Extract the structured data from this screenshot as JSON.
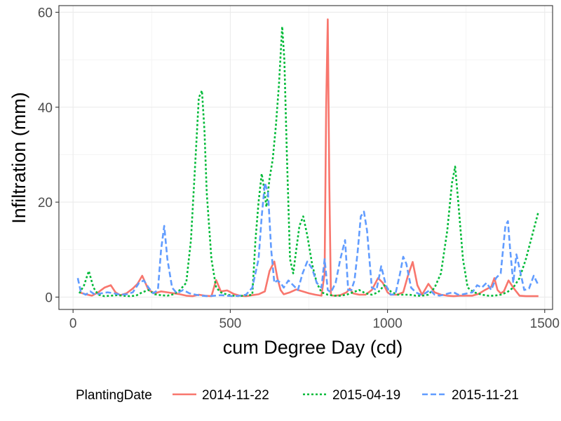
{
  "chart_data": {
    "type": "line",
    "xlabel": "cum Degree Day (cd)",
    "ylabel": "Infiltration (mm)",
    "xlim": [
      -45,
      1525
    ],
    "ylim": [
      -2.6,
      61.4
    ],
    "x_ticks": [
      0,
      500,
      1000,
      1500
    ],
    "x_tick_labels": [
      "0",
      "500",
      "1000",
      "1500"
    ],
    "y_ticks": [
      0,
      20,
      40,
      60
    ],
    "y_tick_labels": [
      "0",
      "20",
      "40",
      "60"
    ],
    "grid": true,
    "legend_position": "bottom",
    "legend_title": "PlantingDate",
    "series": [
      {
        "name": "2014-11-22",
        "color": "#F8766D",
        "dash": "solid",
        "x": [
          20,
          40,
          60,
          80,
          100,
          120,
          135,
          150,
          170,
          190,
          205,
          220,
          240,
          260,
          280,
          300,
          320,
          340,
          360,
          380,
          400,
          420,
          440,
          455,
          470,
          490,
          510,
          530,
          550,
          570,
          590,
          610,
          625,
          640,
          650,
          660,
          670,
          690,
          710,
          730,
          750,
          770,
          790,
          800,
          805,
          810,
          815,
          820,
          830,
          850,
          870,
          880,
          890,
          910,
          930,
          950,
          970,
          985,
          1000,
          1010,
          1030,
          1050,
          1065,
          1080,
          1095,
          1110,
          1130,
          1150,
          1170,
          1190,
          1210,
          1230,
          1250,
          1270,
          1290,
          1310,
          1330,
          1340,
          1350,
          1360,
          1370,
          1385,
          1400,
          1420,
          1440,
          1460,
          1480
        ],
        "values": [
          1.0,
          0.6,
          0.3,
          1.0,
          2.0,
          2.5,
          1.0,
          0.4,
          0.8,
          1.8,
          2.8,
          4.5,
          1.5,
          0.8,
          1.2,
          1.0,
          0.8,
          0.6,
          0.3,
          0.2,
          0.5,
          0.3,
          0.2,
          3.6,
          1.2,
          1.4,
          0.7,
          0.3,
          0.2,
          0.4,
          0.6,
          1.2,
          5.5,
          7.5,
          4.0,
          1.5,
          0.6,
          1.0,
          1.6,
          1.2,
          0.8,
          0.5,
          0.3,
          5.0,
          40.0,
          58.5,
          24.0,
          0.4,
          0.3,
          0.4,
          1.0,
          1.8,
          0.8,
          0.5,
          0.5,
          1.5,
          4.0,
          3.0,
          1.0,
          0.5,
          0.5,
          1.0,
          4.5,
          7.4,
          2.5,
          0.5,
          2.8,
          1.0,
          0.5,
          0.3,
          0.2,
          0.3,
          0.3,
          0.3,
          0.7,
          1.5,
          2.2,
          4.0,
          1.5,
          0.8,
          1.2,
          3.5,
          2.0,
          0.3,
          0.2,
          0.2,
          0.2
        ]
      },
      {
        "name": "2015-04-19",
        "color": "#00BA38",
        "dash": "dotted",
        "x": [
          20,
          35,
          50,
          65,
          80,
          100,
          120,
          140,
          160,
          180,
          200,
          220,
          240,
          260,
          280,
          300,
          320,
          340,
          360,
          375,
          390,
          400,
          410,
          418,
          425,
          440,
          455,
          470,
          490,
          510,
          530,
          550,
          560,
          570,
          580,
          590,
          600,
          605,
          615,
          625,
          635,
          645,
          655,
          665,
          672,
          680,
          690,
          700,
          710,
          720,
          732,
          745,
          760,
          775,
          790,
          810,
          830,
          850,
          870,
          890,
          910,
          930,
          950,
          970,
          990,
          1010,
          1030,
          1050,
          1070,
          1090,
          1110,
          1130,
          1150,
          1170,
          1190,
          1205,
          1215,
          1225,
          1240,
          1255,
          1275,
          1300,
          1320,
          1340,
          1360,
          1380,
          1400,
          1420,
          1440,
          1460,
          1480
        ],
        "values": [
          0.8,
          2.5,
          5.5,
          2.0,
          0.5,
          0.2,
          0.3,
          0.4,
          0.3,
          0.2,
          0.3,
          1.0,
          1.5,
          0.6,
          0.4,
          0.3,
          0.6,
          1.5,
          3.0,
          12.0,
          30.0,
          42.0,
          43.5,
          35.0,
          22.0,
          8.0,
          2.0,
          1.0,
          0.5,
          0.3,
          0.2,
          0.4,
          0.4,
          0.5,
          12.0,
          20.0,
          26.0,
          24.0,
          19.0,
          25.0,
          29.0,
          36.0,
          45.0,
          57.0,
          50.0,
          30.0,
          8.0,
          5.0,
          10.0,
          15.0,
          17.0,
          13.0,
          7.0,
          3.0,
          1.0,
          0.5,
          0.3,
          0.3,
          0.5,
          1.0,
          1.5,
          0.8,
          0.5,
          1.0,
          2.5,
          1.2,
          0.5,
          0.5,
          0.5,
          0.3,
          0.3,
          0.5,
          2.0,
          5.0,
          14.0,
          24.0,
          27.5,
          20.0,
          8.0,
          2.0,
          1.0,
          0.5,
          0.3,
          0.3,
          0.5,
          1.0,
          2.0,
          4.0,
          8.0,
          13.0,
          18.0
        ]
      },
      {
        "name": "2015-11-21",
        "color": "#619CFF",
        "dash": "dashed",
        "x": [
          15,
          25,
          40,
          55,
          70,
          90,
          110,
          130,
          150,
          170,
          190,
          210,
          225,
          240,
          255,
          270,
          280,
          290,
          300,
          315,
          330,
          350,
          370,
          390,
          410,
          430,
          450,
          470,
          490,
          510,
          530,
          550,
          570,
          590,
          600,
          610,
          620,
          630,
          640,
          650,
          660,
          670,
          685,
          700,
          715,
          730,
          745,
          760,
          775,
          790,
          800,
          810,
          820,
          835,
          850,
          865,
          875,
          885,
          895,
          905,
          915,
          925,
          935,
          950,
          965,
          980,
          995,
          1010,
          1025,
          1040,
          1050,
          1060,
          1075,
          1090,
          1105,
          1120,
          1135,
          1150,
          1165,
          1180,
          1195,
          1210,
          1225,
          1240,
          1255,
          1270,
          1285,
          1300,
          1315,
          1330,
          1345,
          1360,
          1375,
          1383,
          1390,
          1400,
          1410,
          1420,
          1435,
          1450,
          1465,
          1480
        ],
        "values": [
          4.0,
          1.0,
          0.5,
          1.2,
          0.5,
          0.8,
          1.0,
          0.8,
          0.5,
          0.6,
          1.0,
          3.0,
          3.5,
          2.0,
          0.8,
          1.5,
          10.0,
          15.0,
          8.0,
          2.0,
          0.8,
          1.5,
          0.8,
          0.5,
          0.3,
          0.2,
          0.3,
          0.4,
          0.3,
          0.2,
          0.3,
          0.5,
          2.0,
          8.0,
          17.0,
          24.0,
          22.0,
          10.0,
          3.0,
          3.5,
          3.0,
          2.0,
          3.5,
          2.5,
          1.5,
          5.0,
          7.5,
          6.0,
          3.0,
          2.0,
          8.0,
          1.5,
          1.0,
          3.0,
          8.0,
          12.0,
          1.5,
          1.5,
          3.5,
          9.5,
          17.0,
          18.0,
          14.0,
          2.0,
          1.5,
          6.5,
          2.5,
          0.5,
          0.6,
          5.0,
          8.5,
          7.0,
          2.0,
          1.0,
          0.5,
          0.8,
          1.5,
          0.5,
          0.3,
          0.5,
          0.8,
          1.0,
          0.5,
          0.6,
          0.8,
          1.0,
          2.5,
          2.0,
          3.0,
          1.5,
          4.0,
          5.0,
          15.0,
          16.0,
          10.0,
          3.0,
          9.0,
          6.0,
          1.5,
          1.8,
          4.5,
          2.5
        ]
      }
    ]
  }
}
